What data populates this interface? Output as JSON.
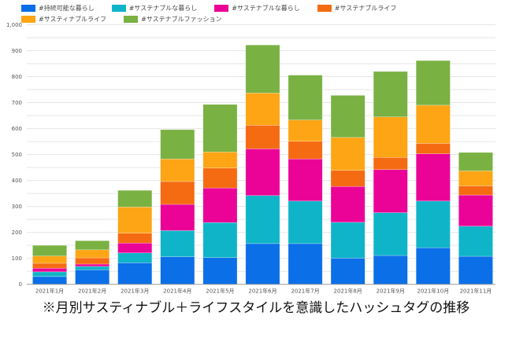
{
  "chart_data": {
    "type": "bar",
    "stacked": true,
    "title": "",
    "xlabel": "",
    "ylabel": "",
    "ylim": [
      0,
      1000
    ],
    "yticks": [
      0,
      100,
      200,
      300,
      400,
      500,
      600,
      700,
      800,
      900,
      1000
    ],
    "ytick_labels": [
      "0",
      "100",
      "200",
      "300",
      "400",
      "500",
      "600",
      "700",
      "800",
      "900",
      "1,000"
    ],
    "grid": true,
    "legend_position": "top-left",
    "categories": [
      "2021年1月",
      "2021年2月",
      "2021年3月",
      "2021年4月",
      "2021年5月",
      "2021年6月",
      "2021年7月",
      "2021年8月",
      "2021年9月",
      "2021年10月",
      "2021年11月"
    ],
    "series": [
      {
        "name": "#持続可能な暮らし",
        "color": "#0b6fe8",
        "values": [
          30,
          56,
          83,
          106,
          103,
          157,
          157,
          101,
          111,
          141,
          108
        ]
      },
      {
        "name": "#サステナブルな暮らし",
        "color": "#0fb4c8",
        "values": [
          18,
          13,
          38,
          101,
          135,
          185,
          164,
          138,
          165,
          180,
          116
        ]
      },
      {
        "name": "#サステナブルな暮らし",
        "color": "#ea0396",
        "values": [
          14,
          9,
          38,
          101,
          133,
          180,
          162,
          138,
          166,
          182,
          120
        ]
      },
      {
        "name": "#サステナブルライフ",
        "color": "#f56b12",
        "values": [
          19,
          24,
          38,
          88,
          77,
          91,
          68,
          62,
          47,
          40,
          35
        ]
      },
      {
        "name": "#サスティナブルライフ",
        "color": "#fda515",
        "values": [
          28,
          31,
          101,
          87,
          62,
          124,
          82,
          127,
          156,
          147,
          58
        ]
      },
      {
        "name": "#サステナブルファッション",
        "color": "#7ab143",
        "values": [
          41,
          35,
          64,
          113,
          183,
          185,
          173,
          162,
          175,
          172,
          71
        ]
      }
    ]
  },
  "caption": "※月別サスティナブル＋ライフスタイルを意識したハッシュタグの推移"
}
